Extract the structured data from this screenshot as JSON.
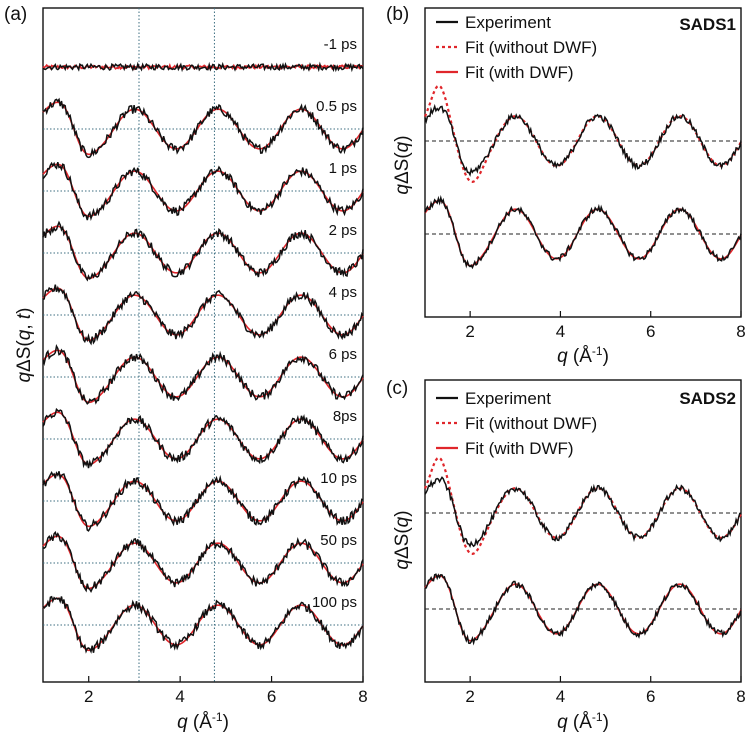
{
  "figure": {
    "colors": {
      "experiment": "#111111",
      "fit": "#e0262b",
      "guide": "#3c6e80",
      "axis": "#111111"
    }
  },
  "chart_data": [
    {
      "panel": "(a)",
      "type": "line",
      "xlabel": "q (Å⁻¹)",
      "ylabel": "qΔS(q, t)",
      "xlim": [
        1,
        8
      ],
      "xticks": [
        "2",
        "4",
        "6",
        "8"
      ],
      "x_tick_values": [
        2,
        4,
        6,
        8
      ],
      "guide_lines_x": [
        3.1,
        4.75
      ],
      "series": [
        {
          "label": "-1 ps",
          "amplitude": 0.0
        },
        {
          "label": "0.5 ps",
          "amplitude": 1.0
        },
        {
          "label": "1 ps",
          "amplitude": 1.0
        },
        {
          "label": "2 ps",
          "amplitude": 1.0
        },
        {
          "label": "4 ps",
          "amplitude": 1.0
        },
        {
          "label": "6 ps",
          "amplitude": 1.0
        },
        {
          "label": "8ps",
          "amplitude": 1.0
        },
        {
          "label": "10 ps",
          "amplitude": 1.0
        },
        {
          "label": "50 ps",
          "amplitude": 1.0
        },
        {
          "label": "100 ps",
          "amplitude": 1.0
        }
      ]
    },
    {
      "panel": "(b)",
      "type": "line",
      "title": "SADS1",
      "xlabel": "q (Å⁻¹)",
      "ylabel": "qΔS(q)",
      "xlim": [
        1,
        8
      ],
      "xticks": [
        "2",
        "4",
        "6",
        "8"
      ],
      "x_tick_values": [
        2,
        4,
        6,
        8
      ],
      "legend": [
        "Experiment",
        "Fit (without DWF)",
        "Fit (with DWF)"
      ],
      "series": [
        {
          "name": "Experiment",
          "style": "solid-black"
        },
        {
          "name": "Fit (without DWF)",
          "style": "dotted-red"
        },
        {
          "name": "Fit (with DWF)",
          "style": "solid-red"
        }
      ]
    },
    {
      "panel": "(c)",
      "type": "line",
      "title": "SADS2",
      "xlabel": "q (Å⁻¹)",
      "ylabel": "qΔS(q)",
      "xlim": [
        1,
        8
      ],
      "xticks": [
        "2",
        "4",
        "6",
        "8"
      ],
      "x_tick_values": [
        2,
        4,
        6,
        8
      ],
      "legend": [
        "Experiment",
        "Fit (without DWF)",
        "Fit (with DWF)"
      ],
      "series": [
        {
          "name": "Experiment",
          "style": "solid-black"
        },
        {
          "name": "Fit (without DWF)",
          "style": "dotted-red"
        },
        {
          "name": "Fit (with DWF)",
          "style": "solid-red"
        }
      ]
    }
  ]
}
